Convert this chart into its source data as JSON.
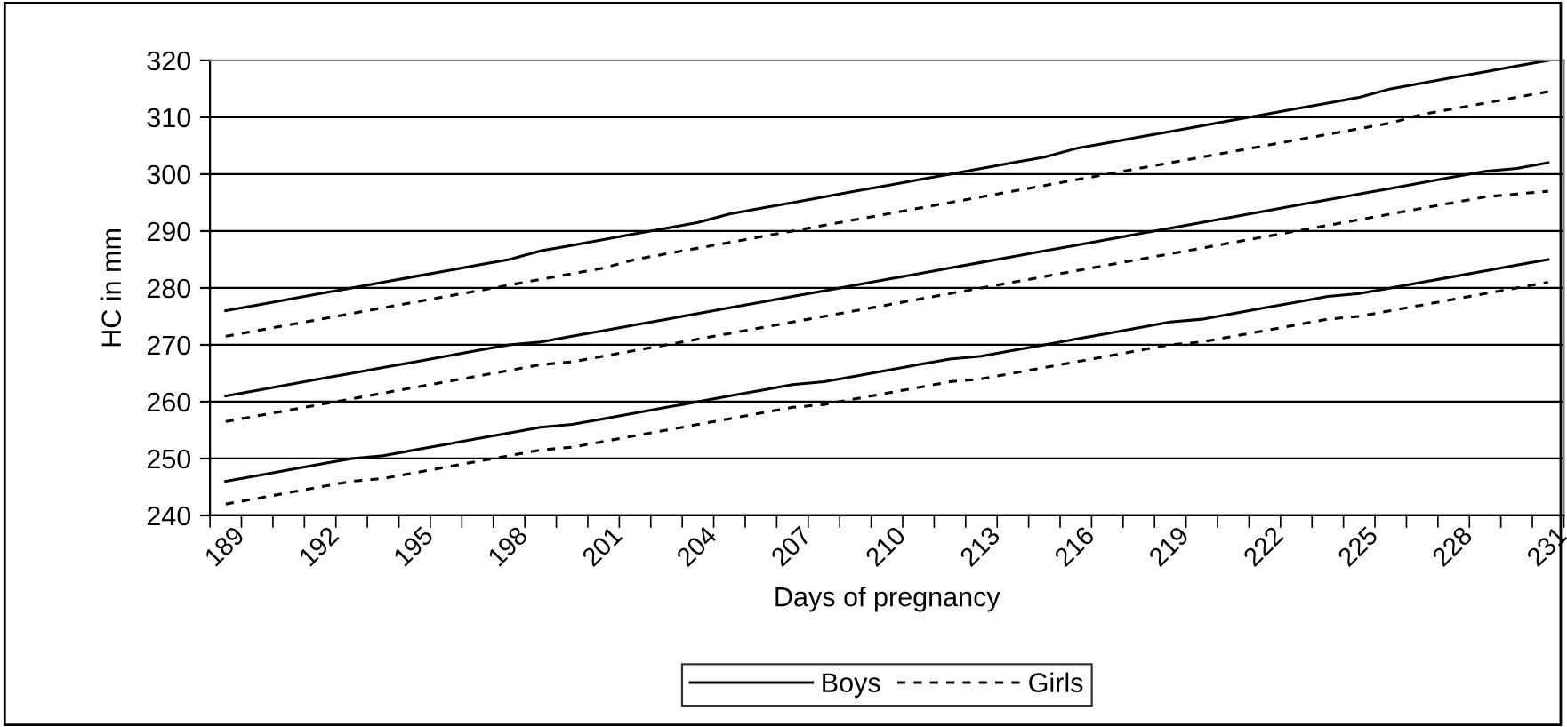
{
  "chart_data": {
    "type": "line",
    "xlabel": "Days of pregnancy",
    "ylabel": "HC in mm",
    "categories": [
      "189",
      null,
      null,
      "192",
      null,
      null,
      "195",
      null,
      null,
      "198",
      null,
      null,
      "201",
      null,
      null,
      "204",
      null,
      null,
      "207",
      null,
      null,
      "210",
      null,
      null,
      "213",
      null,
      null,
      "216",
      null,
      null,
      "219",
      null,
      null,
      "222",
      null,
      null,
      "225",
      null,
      null,
      "228",
      null,
      null,
      "231"
    ],
    "series": [
      {
        "name": "Boys",
        "color": "#000000",
        "line_style": "solid",
        "values": [
          276,
          277,
          278,
          279,
          280,
          281,
          282,
          283,
          284,
          285,
          286.5,
          287.5,
          288.5,
          289.5,
          290.5,
          291.5,
          293,
          294,
          295,
          296,
          297,
          298,
          299,
          300,
          301,
          302,
          303,
          304.5,
          305.5,
          306.5,
          307.5,
          308.5,
          309.5,
          310.5,
          311.5,
          312.5,
          313.5,
          315,
          316,
          317,
          318,
          319,
          320
        ]
      },
      {
        "name": "Girls",
        "color": "#000000",
        "line_style": "dashed",
        "values": [
          271.5,
          272.5,
          273.5,
          274.5,
          275.5,
          276.5,
          277.5,
          278.5,
          279.5,
          280.5,
          281.5,
          282.5,
          283.5,
          285,
          286,
          287,
          288,
          289,
          290,
          291,
          292,
          293,
          294,
          295,
          296,
          297,
          298,
          299,
          300,
          301,
          302,
          303,
          304,
          305,
          306,
          307,
          308,
          309,
          310.5,
          311.5,
          312.5,
          313.5,
          314.5
        ]
      },
      {
        "color": "#000000",
        "line_style": "solid",
        "values": [
          261,
          262,
          263,
          264,
          265,
          266,
          267,
          268,
          269,
          270,
          270.5,
          271.5,
          272.5,
          273.5,
          274.5,
          275.5,
          276.5,
          277.5,
          278.5,
          279.5,
          280.5,
          281.5,
          282.5,
          283.5,
          284.5,
          285.5,
          286.5,
          287.5,
          288.5,
          289.5,
          290.5,
          291.5,
          292.5,
          293.5,
          294.5,
          295.5,
          296.5,
          297.5,
          298.5,
          299.5,
          300.5,
          301,
          302
        ]
      },
      {
        "color": "#000000",
        "line_style": "dashed",
        "values": [
          256.5,
          257.5,
          258.5,
          259.5,
          260.5,
          261.5,
          262.5,
          263.5,
          264.5,
          265.5,
          266.5,
          267,
          268,
          269,
          270,
          271,
          272,
          273,
          274,
          275,
          276,
          277,
          278,
          279,
          280,
          281,
          282,
          283,
          284,
          285,
          286,
          287,
          288,
          289,
          290,
          291,
          292,
          293,
          294,
          295,
          296,
          296.5,
          297
        ]
      },
      {
        "color": "#000000",
        "line_style": "solid",
        "values": [
          246,
          247,
          248,
          249,
          250,
          250.5,
          251.5,
          252.5,
          253.5,
          254.5,
          255.5,
          256,
          257,
          258,
          259,
          260,
          261,
          262,
          263,
          263.5,
          264.5,
          265.5,
          266.5,
          267.5,
          268,
          269,
          270,
          271,
          272,
          273,
          274,
          274.5,
          275.5,
          276.5,
          277.5,
          278.5,
          279,
          280,
          281,
          282,
          283,
          284,
          285
        ]
      },
      {
        "color": "#000000",
        "line_style": "dashed",
        "values": [
          242,
          243,
          244,
          245,
          246,
          246.5,
          247.5,
          248.5,
          249.5,
          250.5,
          251.5,
          252,
          253,
          254,
          255,
          256,
          257,
          258,
          259,
          259.5,
          260.5,
          261.5,
          262.5,
          263.5,
          264,
          265,
          266,
          267,
          268,
          269,
          270,
          270.5,
          271.5,
          272.5,
          273.5,
          274.5,
          275,
          276,
          277,
          278,
          279,
          280,
          281
        ]
      }
    ],
    "ylim": [
      240,
      320
    ],
    "yticks": [
      240,
      250,
      260,
      270,
      280,
      290,
      300,
      310,
      320
    ],
    "grid": "y",
    "legend": "bottom",
    "marker": "none"
  }
}
